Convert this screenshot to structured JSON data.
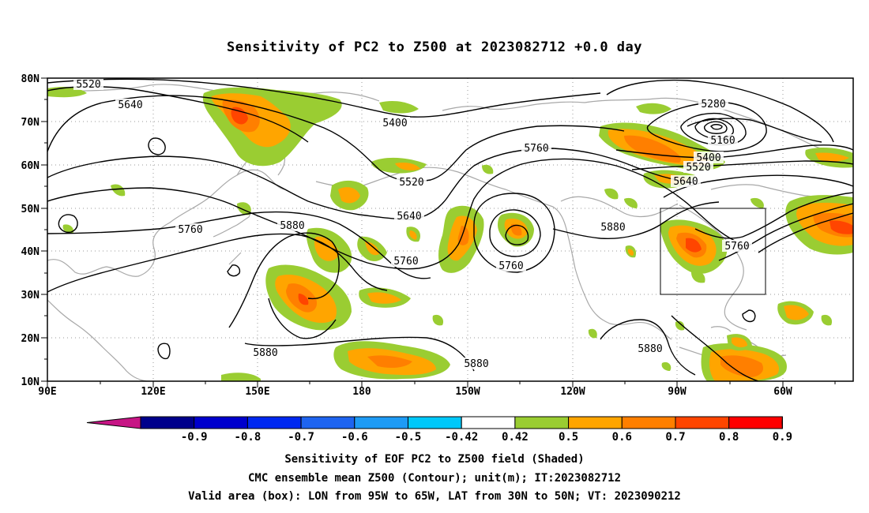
{
  "title": "Sensitivity of PC2 to Z500 at 2023082712 +0.0 day",
  "map": {
    "lat_labels": [
      "80N",
      "70N",
      "60N",
      "50N",
      "40N",
      "30N",
      "20N",
      "10N"
    ],
    "lon_labels": [
      "90E",
      "120E",
      "150E",
      "180",
      "150W",
      "120W",
      "90W",
      "60W"
    ],
    "extent": {
      "lon_min": 90,
      "lon_max": 310,
      "lat_min": 10,
      "lat_max": 80
    },
    "valid_box": {
      "lon_from": -95,
      "lon_to": -65,
      "lat_from": 30,
      "lat_to": 50
    },
    "contour_labels": [
      "5520",
      "5640",
      "5400",
      "5280",
      "5160",
      "5400",
      "5520",
      "5640",
      "5760",
      "5520",
      "5640",
      "5760",
      "5880",
      "5760",
      "5760",
      "5880",
      "5760",
      "5880",
      "5880",
      "5880"
    ]
  },
  "colorbar": {
    "labels": [
      "-0.9",
      "-0.8",
      "-0.7",
      "-0.6",
      "-0.5",
      "-0.42",
      "0.42",
      "0.5",
      "0.6",
      "0.7",
      "0.8",
      "0.9"
    ],
    "colors": [
      "#00008b",
      "#0000cd",
      "#0028f0",
      "#1e64f0",
      "#1e9bf5",
      "#00c8fa",
      "#ffffff",
      "#9acd32",
      "#ffa500",
      "#ff7f00",
      "#ff4500",
      "#ff0000"
    ],
    "low_extend_color": "#c71585",
    "high_extend_color": "#ff9ccd"
  },
  "captions": {
    "line1": "Sensitivity of EOF PC2 to Z500 field (Shaded)",
    "line2": "CMC ensemble mean Z500 (Contour); unit(m); IT:2023082712",
    "line3": "Valid area (box): LON from 95W to 65W, LAT from 30N to 50N; VT: 2023090212"
  }
}
